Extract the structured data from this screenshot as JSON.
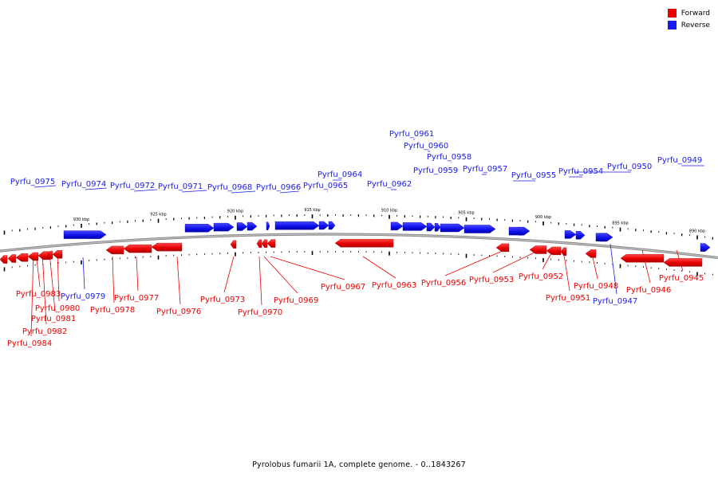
{
  "legend": {
    "forward_label": "Forward",
    "reverse_label": "Reverse",
    "forward_color": "#ee0000",
    "reverse_color": "#1a1aee"
  },
  "caption": "Pyrolobus fumarii 1A, complete genome. - 0..1843267",
  "axis": {
    "tick_labels": [
      {
        "text": "930 kbp",
        "pos": 930
      },
      {
        "text": "925 kbp",
        "pos": 925
      },
      {
        "text": "920 kbp",
        "pos": 920
      },
      {
        "text": "915 kbp",
        "pos": 915
      },
      {
        "text": "910 kbp",
        "pos": 910
      },
      {
        "text": "905 kbp",
        "pos": 905
      },
      {
        "text": "900 kbp",
        "pos": 900
      },
      {
        "text": "895 kbp",
        "pos": 895
      },
      {
        "text": "890 kbp",
        "pos": 890
      }
    ]
  },
  "genes": [
    {
      "name": "Pyrfu_0984",
      "strand": "forward"
    },
    {
      "name": "Pyrfu_0983",
      "strand": "forward"
    },
    {
      "name": "Pyrfu_0982",
      "strand": "forward"
    },
    {
      "name": "Pyrfu_0981",
      "strand": "forward"
    },
    {
      "name": "Pyrfu_0980",
      "strand": "forward"
    },
    {
      "name": "Pyrfu_0979",
      "strand": "reverse"
    },
    {
      "name": "Pyrfu_0978",
      "strand": "forward"
    },
    {
      "name": "Pyrfu_0977",
      "strand": "forward"
    },
    {
      "name": "Pyrfu_0976",
      "strand": "forward"
    },
    {
      "name": "Pyrfu_0975",
      "strand": "reverse"
    },
    {
      "name": "Pyrfu_0974",
      "strand": "reverse"
    },
    {
      "name": "Pyrfu_0973",
      "strand": "forward"
    },
    {
      "name": "Pyrfu_0972",
      "strand": "reverse"
    },
    {
      "name": "Pyrfu_0971",
      "strand": "reverse"
    },
    {
      "name": "Pyrfu_0970",
      "strand": "forward"
    },
    {
      "name": "Pyrfu_0969",
      "strand": "forward"
    },
    {
      "name": "Pyrfu_0968",
      "strand": "reverse"
    },
    {
      "name": "Pyrfu_0967",
      "strand": "forward"
    },
    {
      "name": "Pyrfu_0966",
      "strand": "reverse"
    },
    {
      "name": "Pyrfu_0965",
      "strand": "reverse"
    },
    {
      "name": "Pyrfu_0964",
      "strand": "reverse"
    },
    {
      "name": "Pyrfu_0963",
      "strand": "forward"
    },
    {
      "name": "Pyrfu_0962",
      "strand": "reverse"
    },
    {
      "name": "Pyrfu_0961",
      "strand": "reverse"
    },
    {
      "name": "Pyrfu_0960",
      "strand": "reverse"
    },
    {
      "name": "Pyrfu_0959",
      "strand": "reverse"
    },
    {
      "name": "Pyrfu_0958",
      "strand": "reverse"
    },
    {
      "name": "Pyrfu_0957",
      "strand": "reverse"
    },
    {
      "name": "Pyrfu_0956",
      "strand": "forward"
    },
    {
      "name": "Pyrfu_0955",
      "strand": "reverse"
    },
    {
      "name": "Pyrfu_0954",
      "strand": "reverse"
    },
    {
      "name": "Pyrfu_0953",
      "strand": "forward"
    },
    {
      "name": "Pyrfu_0952",
      "strand": "forward"
    },
    {
      "name": "Pyrfu_0951",
      "strand": "forward"
    },
    {
      "name": "Pyrfu_0950",
      "strand": "reverse"
    },
    {
      "name": "Pyrfu_0949",
      "strand": "reverse"
    },
    {
      "name": "Pyrfu_0948",
      "strand": "forward"
    },
    {
      "name": "Pyrfu_0947",
      "strand": "reverse"
    },
    {
      "name": "Pyrfu_0946",
      "strand": "forward"
    },
    {
      "name": "Pyrfu_0945",
      "strand": "forward"
    }
  ]
}
